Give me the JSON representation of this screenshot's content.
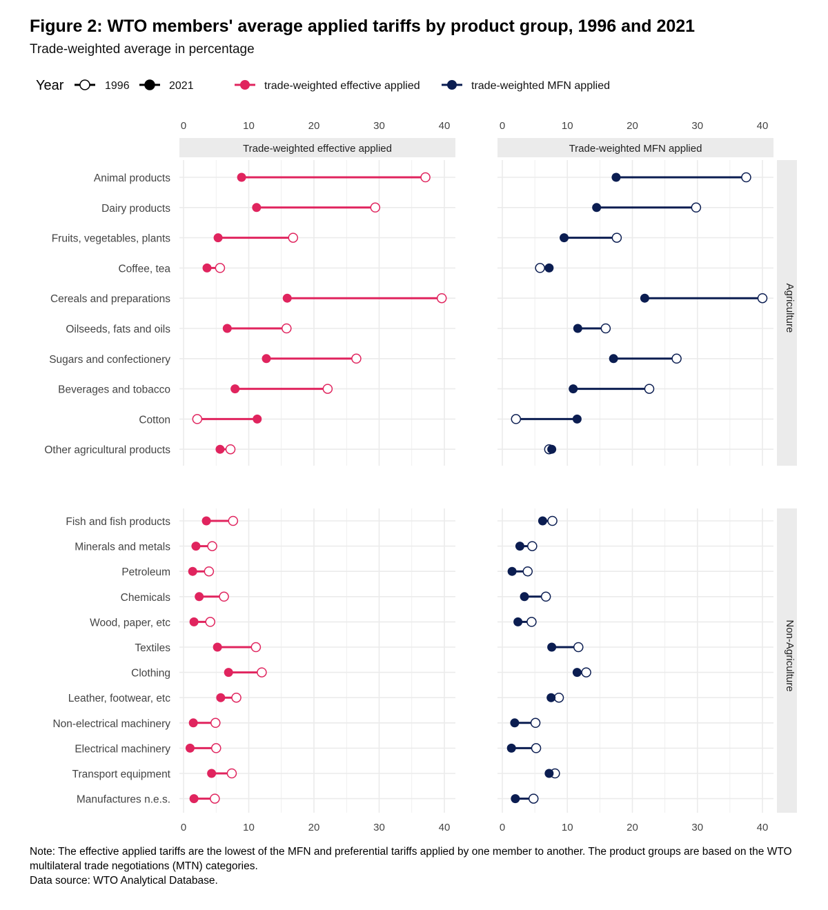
{
  "title": "Figure 2: WTO members' average applied tariffs by product group, 1996 and 2021",
  "subtitle": "Trade-weighted average in percentage",
  "note": "Note: The effective applied tariffs are the lowest of the MFN and preferential tariffs applied by one member to another. The product groups are based on the WTO multilateral trade negotiations (MTN) categories.",
  "source": "Data source: WTO Analytical Database.",
  "legend": {
    "year_title": "Year",
    "years": [
      "1996",
      "2021"
    ],
    "series": [
      "trade-weighted effective applied",
      "trade-weighted MFN applied"
    ]
  },
  "colors": {
    "effective": "#E0245E",
    "mfn": "#0B1D51",
    "strip": "#EBEBEB",
    "grid": "#EBEBEB"
  },
  "chart_data": {
    "type": "dumbbell",
    "xlim": [
      0,
      40
    ],
    "x_ticks": [
      0,
      10,
      20,
      30,
      40
    ],
    "grid": true,
    "legend_position": "top",
    "columns": [
      "Trade-weighted effective applied",
      "Trade-weighted MFN applied"
    ],
    "rows": [
      "Agriculture",
      "Non-Agriculture"
    ],
    "groups": [
      {
        "name": "Agriculture",
        "categories": [
          "Animal products",
          "Dairy products",
          "Fruits, vegetables, plants",
          "Coffee, tea",
          "Cereals and preparations",
          "Oilseeds, fats and oils",
          "Sugars and confectionery",
          "Beverages and tobacco",
          "Cotton",
          "Other agricultural products"
        ],
        "effective_1996": [
          37.1,
          29.4,
          16.8,
          5.6,
          39.6,
          15.8,
          26.5,
          22.1,
          2.1,
          7.2
        ],
        "effective_2021": [
          8.9,
          11.2,
          5.3,
          3.6,
          15.9,
          6.7,
          12.7,
          7.9,
          11.3,
          5.6
        ],
        "mfn_1996": [
          37.5,
          29.8,
          17.6,
          5.8,
          40.0,
          15.9,
          26.8,
          22.6,
          2.1,
          7.2
        ],
        "mfn_2021": [
          17.5,
          14.5,
          9.5,
          7.2,
          21.9,
          11.6,
          17.1,
          10.9,
          11.5,
          7.6
        ]
      },
      {
        "name": "Non-Agriculture",
        "categories": [
          "Fish and fish products",
          "Minerals and metals",
          "Petroleum",
          "Chemicals",
          "Wood, paper, etc",
          "Textiles",
          "Clothing",
          "Leather, footwear, etc",
          "Non-electrical machinery",
          "Electrical machinery",
          "Transport equipment",
          "Manufactures n.e.s."
        ],
        "effective_1996": [
          7.6,
          4.4,
          3.9,
          6.2,
          4.1,
          11.1,
          12.0,
          8.1,
          4.9,
          5.0,
          7.4,
          4.8
        ],
        "effective_2021": [
          3.5,
          1.9,
          1.4,
          2.4,
          1.6,
          5.2,
          6.9,
          5.7,
          1.5,
          1.0,
          4.3,
          1.6
        ],
        "mfn_1996": [
          7.7,
          4.6,
          3.9,
          6.7,
          4.5,
          11.7,
          12.9,
          8.7,
          5.1,
          5.2,
          8.1,
          4.8
        ],
        "mfn_2021": [
          6.2,
          2.7,
          1.5,
          3.4,
          2.4,
          7.6,
          11.5,
          7.5,
          1.9,
          1.4,
          7.2,
          2.0
        ]
      }
    ]
  }
}
